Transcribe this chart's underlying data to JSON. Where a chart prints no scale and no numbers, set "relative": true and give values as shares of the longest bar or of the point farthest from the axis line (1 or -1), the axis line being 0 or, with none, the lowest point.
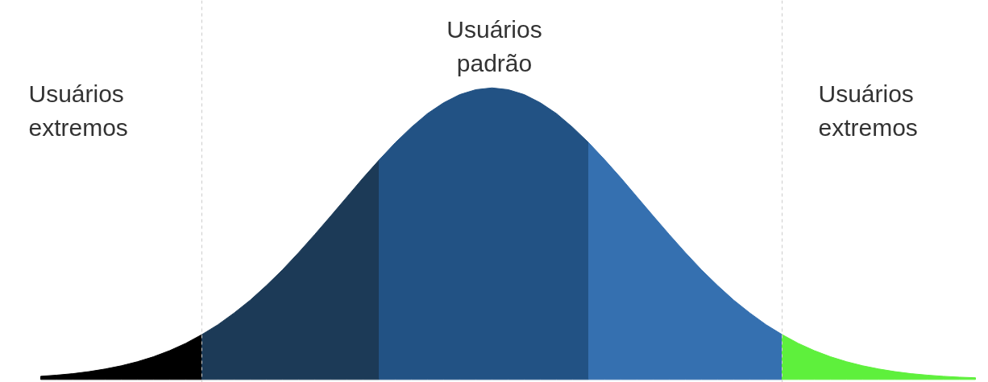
{
  "chart_data": {
    "type": "area",
    "relative": true,
    "tick_labels": false,
    "grid": false,
    "categories": [
      null,
      null,
      null,
      null,
      null,
      null,
      null,
      null,
      null,
      null,
      null,
      null,
      null,
      null,
      null,
      null,
      null,
      null,
      null,
      null,
      null,
      null,
      null,
      null,
      null,
      null,
      null,
      null,
      null,
      null,
      null,
      null,
      null,
      null,
      null,
      null,
      null,
      null,
      null,
      null,
      null,
      null,
      null,
      null,
      null,
      null,
      null,
      null,
      null,
      null,
      null,
      null,
      null,
      null,
      null,
      null,
      null,
      null,
      null
    ],
    "series": [
      {
        "color": "#000000",
        "values": [
          0.011,
          0.015,
          0.02,
          0.027,
          0.036,
          0.047,
          0.061,
          0.078,
          0.099,
          0.124,
          0.154,
          null,
          null,
          null,
          null,
          null,
          null,
          null,
          null,
          null,
          null,
          null,
          null,
          null,
          null,
          null,
          null,
          null,
          null,
          null,
          null,
          null,
          null,
          null,
          null,
          null,
          null,
          null,
          null,
          null,
          null,
          null,
          null,
          null,
          null,
          null,
          null,
          null,
          null,
          null,
          null,
          null,
          null,
          null,
          null,
          null,
          null,
          null,
          null
        ]
      },
      {
        "color": "#1c3a57",
        "values": [
          null,
          null,
          null,
          null,
          null,
          null,
          null,
          null,
          null,
          null,
          0.154,
          0.188,
          0.228,
          0.272,
          0.322,
          0.376,
          0.435,
          0.497,
          0.561,
          0.626,
          0.691,
          0.753,
          null,
          null,
          null,
          null,
          null,
          null,
          null,
          null,
          null,
          null,
          null,
          null,
          null,
          null,
          null,
          null,
          null,
          null,
          null,
          null,
          null,
          null,
          null,
          null,
          null,
          null,
          null,
          null,
          null,
          null,
          null,
          null,
          null,
          null,
          null,
          null,
          null
        ]
      },
      {
        "color": "#225284",
        "values": [
          null,
          null,
          null,
          null,
          null,
          null,
          null,
          null,
          null,
          null,
          null,
          null,
          null,
          null,
          null,
          null,
          null,
          null,
          null,
          null,
          null,
          0.753,
          0.812,
          0.865,
          0.912,
          0.949,
          0.977,
          0.994,
          1.0,
          0.994,
          0.977,
          0.949,
          0.912,
          0.865,
          0.812,
          null,
          null,
          null,
          null,
          null,
          null,
          null,
          null,
          null,
          null,
          null,
          null,
          null,
          null,
          null,
          null,
          null,
          null,
          null,
          null,
          null,
          null,
          null,
          null
        ]
      },
      {
        "color": "#3570b0",
        "values": [
          null,
          null,
          null,
          null,
          null,
          null,
          null,
          null,
          null,
          null,
          null,
          null,
          null,
          null,
          null,
          null,
          null,
          null,
          null,
          null,
          null,
          null,
          null,
          null,
          null,
          null,
          null,
          null,
          null,
          null,
          null,
          null,
          null,
          null,
          0.812,
          0.753,
          0.691,
          0.626,
          0.561,
          0.497,
          0.435,
          0.376,
          0.322,
          0.272,
          0.228,
          0.188,
          0.154,
          null,
          null,
          null,
          null,
          null,
          null,
          null,
          null,
          null,
          null,
          null,
          null
        ]
      },
      {
        "color": "#5ef03c",
        "values": [
          null,
          null,
          null,
          null,
          null,
          null,
          null,
          null,
          null,
          null,
          null,
          null,
          null,
          null,
          null,
          null,
          null,
          null,
          null,
          null,
          null,
          null,
          null,
          null,
          null,
          null,
          null,
          null,
          null,
          null,
          null,
          null,
          null,
          null,
          null,
          null,
          null,
          null,
          null,
          null,
          null,
          null,
          null,
          null,
          null,
          null,
          0.154,
          0.124,
          0.099,
          0.078,
          0.061,
          0.047,
          0.036,
          0.027,
          0.02,
          0.015,
          0.011,
          0.008,
          0.006
        ]
      }
    ],
    "annotations": [
      "Usuários extremos",
      "Usuários padrão",
      "Usuários extremos"
    ]
  }
}
